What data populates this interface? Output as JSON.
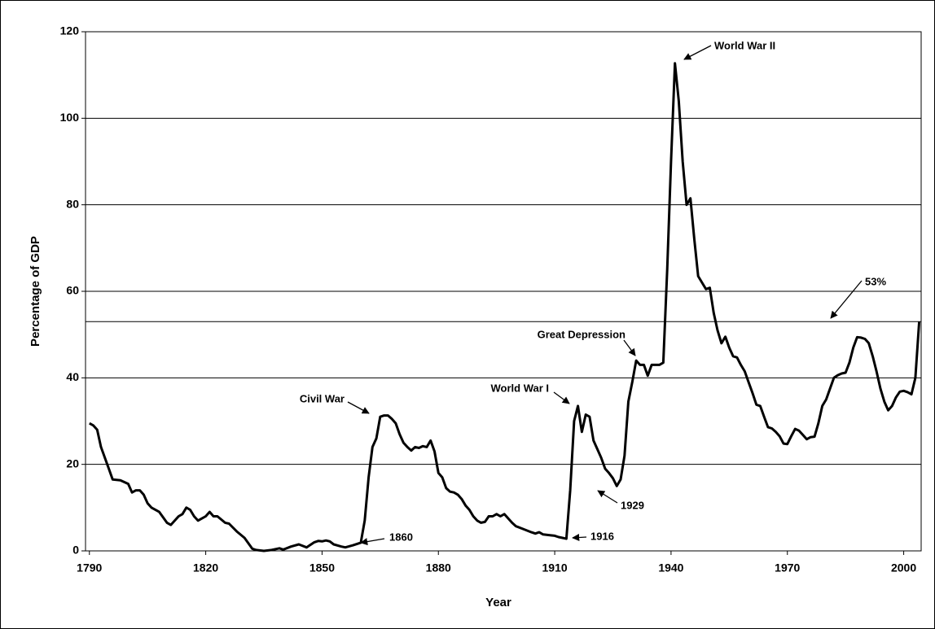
{
  "chart_data": {
    "type": "line",
    "x_label": "Year",
    "y_label": "Percentage of GDP",
    "x": [
      1790,
      1791,
      1792,
      1793,
      1795,
      1796,
      1798,
      1800,
      1801,
      1802,
      1803,
      1804,
      1805,
      1806,
      1808,
      1810,
      1811,
      1813,
      1814,
      1815,
      1816,
      1817,
      1818,
      1820,
      1821,
      1822,
      1823,
      1825,
      1826,
      1828,
      1830,
      1832,
      1833,
      1835,
      1837,
      1839,
      1840,
      1842,
      1844,
      1846,
      1848,
      1849,
      1850,
      1851,
      1852,
      1853,
      1855,
      1856,
      1858,
      1860,
      1861,
      1862,
      1863,
      1864,
      1865,
      1866,
      1867,
      1868,
      1869,
      1870,
      1871,
      1872,
      1873,
      1874,
      1875,
      1876,
      1877,
      1878,
      1879,
      1880,
      1881,
      1882,
      1883,
      1884,
      1885,
      1886,
      1887,
      1888,
      1889,
      1890,
      1891,
      1892,
      1893,
      1894,
      1895,
      1896,
      1897,
      1898,
      1899,
      1900,
      1902,
      1904,
      1905,
      1906,
      1907,
      1909,
      1910,
      1911,
      1912,
      1913,
      1914,
      1915,
      1916,
      1917,
      1918,
      1919,
      1920,
      1921,
      1922,
      1923,
      1924,
      1925,
      1926,
      1927,
      1928,
      1929,
      1930,
      1931,
      1932,
      1933,
      1934,
      1935,
      1936,
      1937,
      1938,
      1939,
      1940,
      1941,
      1942,
      1943,
      1944,
      1945,
      1946,
      1947,
      1948,
      1949,
      1950,
      1951,
      1952,
      1953,
      1954,
      1955,
      1956,
      1957,
      1958,
      1959,
      1960,
      1961,
      1962,
      1963,
      1964,
      1965,
      1966,
      1967,
      1968,
      1969,
      1970,
      1971,
      1972,
      1973,
      1974,
      1975,
      1976,
      1977,
      1978,
      1979,
      1980,
      1981,
      1982,
      1983,
      1984,
      1985,
      1986,
      1987,
      1988,
      1989,
      1990,
      1991,
      1992,
      1993,
      1994,
      1995,
      1996,
      1997,
      1998,
      1999,
      2000,
      2001,
      2002,
      2003,
      2004
    ],
    "values": [
      29.5,
      29,
      28,
      24,
      19,
      16.5,
      16.3,
      15.5,
      13.5,
      14,
      14,
      13,
      11,
      10,
      9,
      6.5,
      6,
      8,
      8.5,
      10,
      9.5,
      8,
      7,
      8,
      9,
      8,
      8,
      6.5,
      6.3,
      4.5,
      3,
      0.5,
      0.2,
      0,
      0.2,
      0.6,
      0.3,
      1,
      1.5,
      0.8,
      2,
      2.3,
      2.2,
      2.4,
      2.2,
      1.5,
      1,
      0.8,
      1.3,
      1.9,
      7,
      17,
      24,
      26,
      31,
      31.3,
      31.3,
      30.5,
      29.5,
      27,
      25,
      24,
      23.2,
      24,
      23.8,
      24.2,
      24,
      25.5,
      23,
      18,
      17,
      14.5,
      13.7,
      13.5,
      13,
      12,
      10.5,
      9.5,
      8,
      7,
      6.5,
      6.7,
      8,
      8,
      8.5,
      8,
      8.5,
      7.5,
      6.5,
      5.7,
      5,
      4.3,
      4,
      4.3,
      3.8,
      3.6,
      3.5,
      3.2,
      3,
      2.8,
      14,
      30,
      33.5,
      27.5,
      31.5,
      31,
      25.5,
      23.5,
      21.5,
      19,
      18,
      16.8,
      15,
      16.5,
      22,
      34.5,
      39,
      44,
      43,
      43,
      40.5,
      43,
      43,
      43,
      43.5,
      65,
      90,
      112.7,
      104,
      90,
      80,
      81.5,
      72,
      63.5,
      62,
      60.5,
      60.8,
      55,
      51,
      48,
      49.5,
      47,
      45,
      44.7,
      43,
      41.5,
      39,
      36.5,
      33.8,
      33.5,
      31,
      28.6,
      28.3,
      27.5,
      26.5,
      24.8,
      24.7,
      26.5,
      28.2,
      27.8,
      26.8,
      25.8,
      26.3,
      26.4,
      29.5,
      33.5,
      35,
      37.5,
      40,
      40.6,
      41,
      41.2,
      43.5,
      47,
      49.4,
      49.3,
      49,
      48,
      45,
      41.5,
      37.5,
      34.5,
      32.5,
      33.5,
      35.5,
      36.8,
      37,
      36.7,
      36.2,
      40,
      53
    ],
    "color": "#000000",
    "xlim": [
      1789,
      2004.5
    ],
    "xticks": [
      1790,
      1820,
      1850,
      1880,
      1910,
      1940,
      1970,
      2000
    ],
    "ylim": [
      0,
      120
    ],
    "yticks": [
      0,
      20,
      40,
      60,
      80,
      100,
      120
    ],
    "grid": true,
    "reference_line": 53,
    "annotations": [
      "World War II",
      "Great Depression",
      "World War I",
      "Civil War",
      "1860",
      "1916",
      "1929",
      "53%"
    ]
  }
}
